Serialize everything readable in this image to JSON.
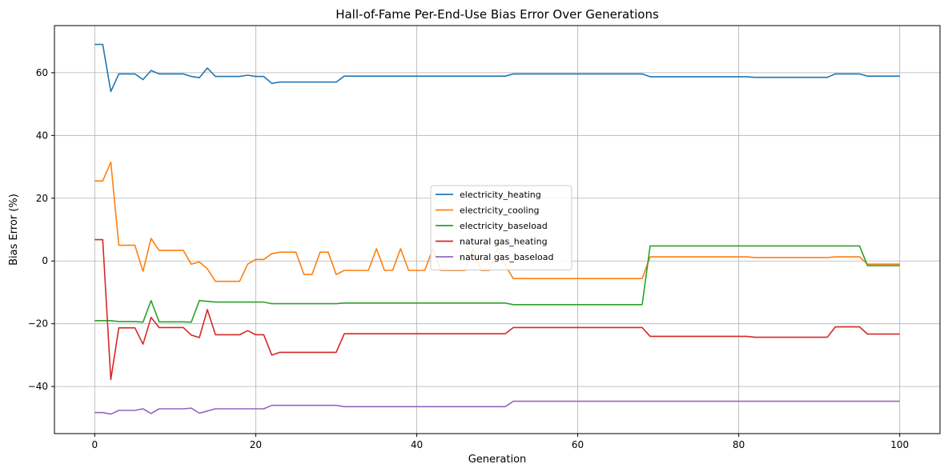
{
  "chart_data": {
    "type": "line",
    "title": "Hall-of-Fame Per-End-Use Bias Error Over Generations",
    "xlabel": "Generation",
    "ylabel": "Bias Error (%)",
    "xlim": [
      -5,
      105
    ],
    "ylim": [
      -55,
      75
    ],
    "xticks": [
      0,
      20,
      40,
      60,
      80,
      100
    ],
    "yticks": [
      -40,
      -20,
      0,
      20,
      40,
      60
    ],
    "grid": true,
    "legend_position": "center-right",
    "series": [
      {
        "name": "electricity_heating",
        "color": "#1f77b4",
        "points": [
          [
            0,
            69
          ],
          [
            1,
            69
          ],
          [
            2,
            54
          ],
          [
            3,
            59.6
          ],
          [
            5,
            59.6
          ],
          [
            6,
            57.8
          ],
          [
            7,
            60.7
          ],
          [
            8,
            59.6
          ],
          [
            11,
            59.6
          ],
          [
            12,
            58.8
          ],
          [
            13,
            58.4
          ],
          [
            14,
            61.5
          ],
          [
            15,
            58.8
          ],
          [
            18,
            58.8
          ],
          [
            19,
            59.2
          ],
          [
            20,
            58.8
          ],
          [
            21,
            58.8
          ],
          [
            22,
            56.6
          ],
          [
            23,
            57
          ],
          [
            30,
            57
          ],
          [
            31,
            58.9
          ],
          [
            51,
            58.9
          ],
          [
            52,
            59.6
          ],
          [
            68,
            59.6
          ],
          [
            69,
            58.7
          ],
          [
            81,
            58.7
          ],
          [
            82,
            58.5
          ],
          [
            91,
            58.5
          ],
          [
            92,
            59.6
          ],
          [
            95,
            59.6
          ],
          [
            96,
            58.9
          ],
          [
            100,
            58.9
          ]
        ]
      },
      {
        "name": "electricity_cooling",
        "color": "#ff7f0e",
        "points": [
          [
            0,
            25.5
          ],
          [
            1,
            25.5
          ],
          [
            2,
            31.5
          ],
          [
            3,
            5
          ],
          [
            5,
            5
          ],
          [
            6,
            -3.3
          ],
          [
            7,
            7.2
          ],
          [
            8,
            3.4
          ],
          [
            11,
            3.4
          ],
          [
            12,
            -1
          ],
          [
            13,
            -0.3
          ],
          [
            14,
            -2.5
          ],
          [
            15,
            -6.5
          ],
          [
            18,
            -6.5
          ],
          [
            19,
            -1
          ],
          [
            20,
            0.5
          ],
          [
            21,
            0.5
          ],
          [
            22,
            2.3
          ],
          [
            23,
            2.8
          ],
          [
            25,
            2.8
          ],
          [
            26,
            -4.3
          ],
          [
            27,
            -4.3
          ],
          [
            28,
            2.8
          ],
          [
            29,
            2.8
          ],
          [
            30,
            -4.3
          ],
          [
            31,
            -3
          ],
          [
            34,
            -3
          ],
          [
            35,
            3.9
          ],
          [
            36,
            -3
          ],
          [
            37,
            -3
          ],
          [
            38,
            3.9
          ],
          [
            39,
            -3
          ],
          [
            41,
            -3
          ],
          [
            42,
            3.9
          ],
          [
            43,
            -3
          ],
          [
            46,
            -3
          ],
          [
            47,
            3.9
          ],
          [
            48,
            -3
          ],
          [
            49,
            -3
          ],
          [
            50,
            3.9
          ],
          [
            51,
            -1.5
          ],
          [
            52,
            -5.6
          ],
          [
            68,
            -5.6
          ],
          [
            69,
            1.3
          ],
          [
            81,
            1.3
          ],
          [
            82,
            1.1
          ],
          [
            91,
            1.1
          ],
          [
            92,
            1.3
          ],
          [
            95,
            1.3
          ],
          [
            96,
            -1
          ],
          [
            100,
            -1
          ]
        ]
      },
      {
        "name": "electricity_baseload",
        "color": "#2ca02c",
        "points": [
          [
            0,
            -19
          ],
          [
            2,
            -19
          ],
          [
            3,
            -19.3
          ],
          [
            5,
            -19.3
          ],
          [
            6,
            -19.5
          ],
          [
            7,
            -12.6
          ],
          [
            8,
            -19.4
          ],
          [
            11,
            -19.4
          ],
          [
            12,
            -19.5
          ],
          [
            13,
            -12.6
          ],
          [
            15,
            -13.1
          ],
          [
            21,
            -13.1
          ],
          [
            22,
            -13.6
          ],
          [
            30,
            -13.6
          ],
          [
            31,
            -13.4
          ],
          [
            51,
            -13.4
          ],
          [
            52,
            -13.9
          ],
          [
            68,
            -13.9
          ],
          [
            69,
            4.8
          ],
          [
            95,
            4.8
          ],
          [
            96,
            -1.5
          ],
          [
            100,
            -1.5
          ]
        ]
      },
      {
        "name": "natural gas_heating",
        "color": "#d62728",
        "points": [
          [
            0,
            6.8
          ],
          [
            1,
            6.8
          ],
          [
            2,
            -37.8
          ],
          [
            3,
            -21.3
          ],
          [
            5,
            -21.3
          ],
          [
            6,
            -26.5
          ],
          [
            7,
            -18
          ],
          [
            8,
            -21.2
          ],
          [
            11,
            -21.2
          ],
          [
            12,
            -23.6
          ],
          [
            13,
            -24.4
          ],
          [
            14,
            -15.5
          ],
          [
            15,
            -23.5
          ],
          [
            18,
            -23.5
          ],
          [
            19,
            -22.2
          ],
          [
            20,
            -23.5
          ],
          [
            21,
            -23.5
          ],
          [
            22,
            -30
          ],
          [
            23,
            -29.1
          ],
          [
            30,
            -29.1
          ],
          [
            31,
            -23.2
          ],
          [
            51,
            -23.2
          ],
          [
            52,
            -21.2
          ],
          [
            68,
            -21.2
          ],
          [
            69,
            -24
          ],
          [
            81,
            -24
          ],
          [
            82,
            -24.3
          ],
          [
            91,
            -24.3
          ],
          [
            92,
            -21
          ],
          [
            95,
            -21
          ],
          [
            96,
            -23.3
          ],
          [
            100,
            -23.3
          ]
        ]
      },
      {
        "name": "natural gas_baseload",
        "color": "#9467bd",
        "points": [
          [
            0,
            -48.3
          ],
          [
            1,
            -48.3
          ],
          [
            2,
            -48.8
          ],
          [
            3,
            -47.6
          ],
          [
            5,
            -47.6
          ],
          [
            6,
            -47.1
          ],
          [
            7,
            -48.6
          ],
          [
            8,
            -47.1
          ],
          [
            11,
            -47.1
          ],
          [
            12,
            -46.9
          ],
          [
            13,
            -48.5
          ],
          [
            15,
            -47.1
          ],
          [
            21,
            -47.1
          ],
          [
            22,
            -46
          ],
          [
            30,
            -46
          ],
          [
            31,
            -46.4
          ],
          [
            51,
            -46.4
          ],
          [
            52,
            -44.7
          ],
          [
            100,
            -44.7
          ]
        ]
      }
    ]
  }
}
